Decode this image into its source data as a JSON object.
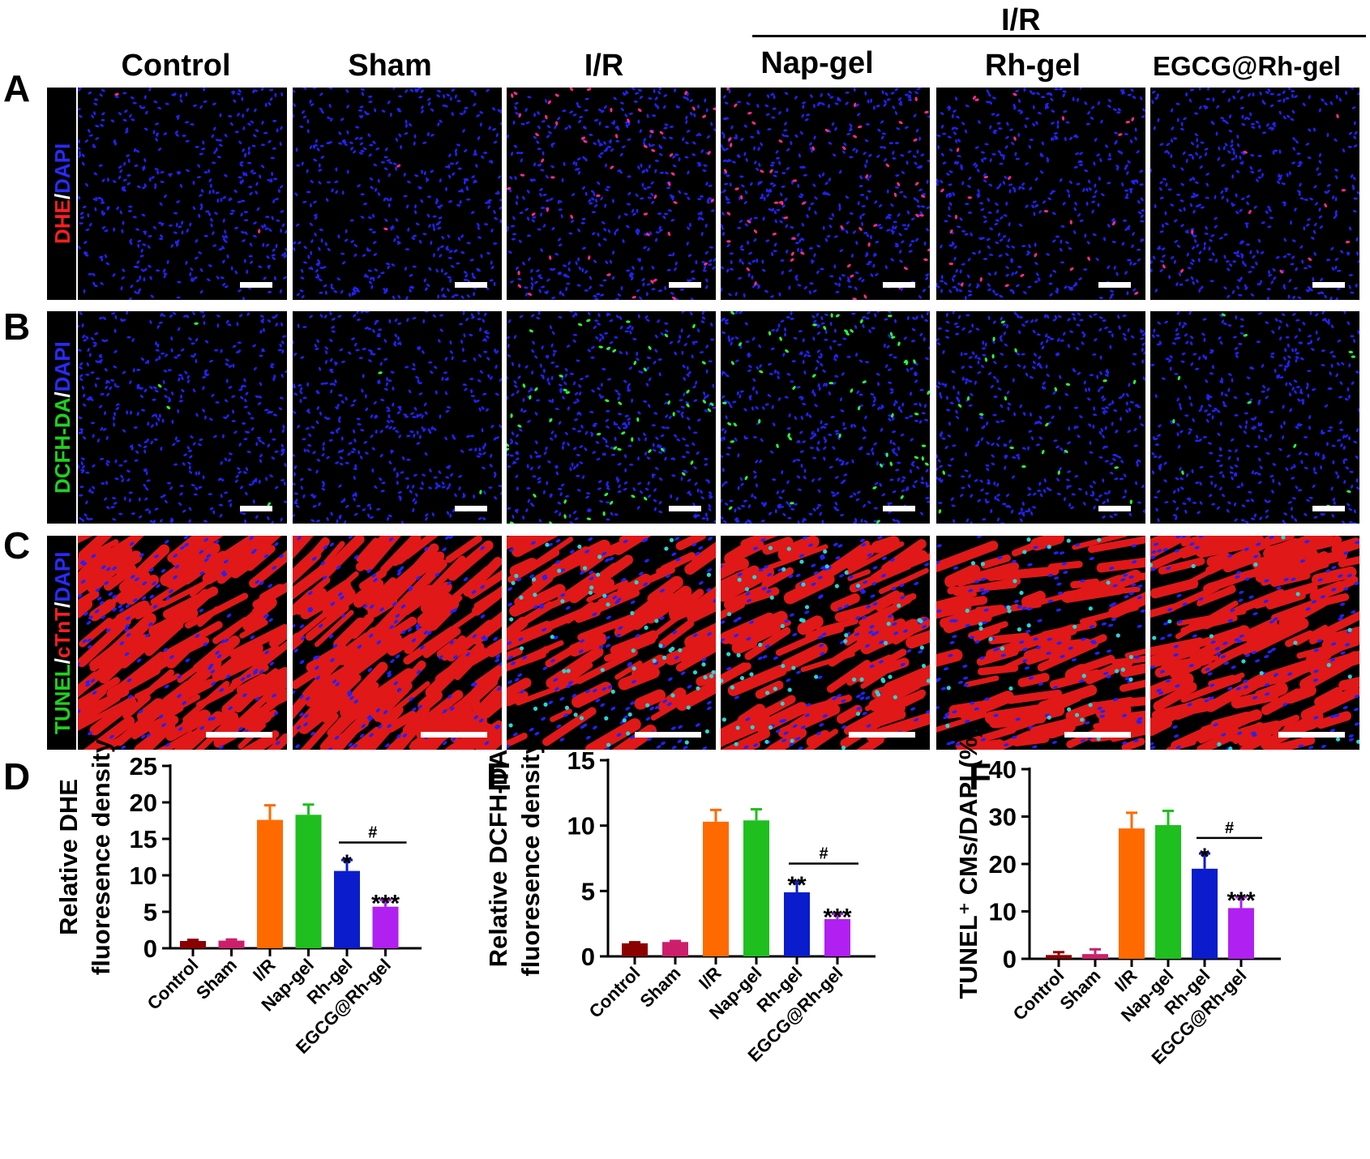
{
  "figure": {
    "panel_letters": [
      "A",
      "B",
      "C",
      "D",
      "E",
      "F"
    ],
    "group_header": "I/R",
    "columns": [
      "Control",
      "Sham",
      "I/R",
      "Nap-gel",
      "Rh-gel",
      "EGCG@Rh-gel"
    ],
    "rows": [
      {
        "id": "A",
        "label_parts": [
          {
            "text": "DHE",
            "color": "#ff1f1f"
          },
          {
            "text": "/",
            "color": "#ffffff"
          },
          {
            "text": "DAPI",
            "color": "#2a2aff"
          }
        ],
        "style": "dhe"
      },
      {
        "id": "B",
        "label_parts": [
          {
            "text": "DCFH-DA",
            "color": "#1fd11f"
          },
          {
            "text": "/",
            "color": "#ffffff"
          },
          {
            "text": "DAPI",
            "color": "#2a2aff"
          }
        ],
        "style": "dcfh"
      },
      {
        "id": "C",
        "label_parts": [
          {
            "text": "TUNEL",
            "color": "#1fd11f"
          },
          {
            "text": "/",
            "color": "#ffffff"
          },
          {
            "text": "cTnT",
            "color": "#ff1f1f"
          },
          {
            "text": "/",
            "color": "#ffffff"
          },
          {
            "text": "DAPI",
            "color": "#2a2aff"
          }
        ],
        "style": "tunel"
      }
    ],
    "signal_levels": {
      "dhe": [
        0.02,
        0.02,
        0.6,
        0.65,
        0.3,
        0.12
      ],
      "dcfh": [
        0.04,
        0.02,
        0.6,
        0.6,
        0.25,
        0.12
      ],
      "tunel": [
        0.0,
        0.0,
        0.5,
        0.5,
        0.3,
        0.15
      ],
      "tunel_tissue_gap": [
        0.05,
        0.05,
        0.45,
        0.4,
        0.35,
        0.2
      ]
    },
    "colors": {
      "bar_colors": [
        "#8b0000",
        "#cc1f6b",
        "#ff6a00",
        "#1fbf1f",
        "#0a1ccc",
        "#b020f0"
      ],
      "dapi": "#2222ff",
      "dhe": "#ff2a8a",
      "dcfh": "#22ff44",
      "ctnt": "#e01818",
      "tunel": "#27d6d6"
    }
  },
  "chart_data": [
    {
      "panel": "D",
      "type": "bar",
      "categories": [
        "Control",
        "Sham",
        "I/R",
        "Nap-gel",
        "Rh-gel",
        "EGCG@Rh-gel"
      ],
      "values": [
        1.0,
        1.05,
        17.6,
        18.3,
        10.6,
        5.7
      ],
      "errors": [
        0.15,
        0.15,
        2.0,
        1.4,
        1.5,
        0.9
      ],
      "ylabel_lines": [
        "Relative DHE",
        "fluoresence density"
      ],
      "ylim": [
        0,
        25
      ],
      "yticks": [
        0,
        5,
        10,
        15,
        20,
        25
      ],
      "annotations": [
        {
          "category": "Rh-gel",
          "text": "*"
        },
        {
          "category": "EGCG@Rh-gel",
          "text": "***"
        }
      ],
      "comparison": {
        "from": "Rh-gel",
        "to": "EGCG@Rh-gel",
        "text": "#",
        "y": 14.5
      }
    },
    {
      "panel": "E",
      "type": "bar",
      "categories": [
        "Control",
        "Sham",
        "I/R",
        "Nap-gel",
        "Rh-gel",
        "EGCG@Rh-gel"
      ],
      "values": [
        1.0,
        1.1,
        10.3,
        10.4,
        4.9,
        2.85
      ],
      "errors": [
        0.08,
        0.08,
        0.9,
        0.85,
        0.8,
        0.4
      ],
      "ylabel_lines": [
        "Relative DCFH-DA",
        "fluoresence density"
      ],
      "ylim": [
        0,
        15
      ],
      "yticks": [
        0,
        5,
        10,
        15
      ],
      "annotations": [
        {
          "category": "Rh-gel",
          "text": "**"
        },
        {
          "category": "EGCG@Rh-gel",
          "text": "***"
        }
      ],
      "comparison": {
        "from": "Rh-gel",
        "to": "EGCG@Rh-gel",
        "text": "#",
        "y": 7.1
      }
    },
    {
      "panel": "F",
      "type": "bar",
      "categories": [
        "Control",
        "Sham",
        "I/R",
        "Nap-gel",
        "Rh-gel",
        "EGCG@Rh-gel"
      ],
      "values": [
        0.8,
        1.0,
        27.5,
        28.2,
        19.0,
        10.7
      ],
      "errors": [
        0.6,
        1.0,
        3.3,
        3.0,
        3.2,
        2.3
      ],
      "ylabel_lines": [
        "TUNEL⁺ CMs/DAPI (%)"
      ],
      "ylim": [
        0,
        40
      ],
      "yticks": [
        0,
        10,
        20,
        30,
        40
      ],
      "annotations": [
        {
          "category": "Rh-gel",
          "text": "*"
        },
        {
          "category": "EGCG@Rh-gel",
          "text": "***"
        }
      ],
      "comparison": {
        "from": "Rh-gel",
        "to": "EGCG@Rh-gel",
        "text": "#",
        "y": 25.5
      }
    }
  ]
}
